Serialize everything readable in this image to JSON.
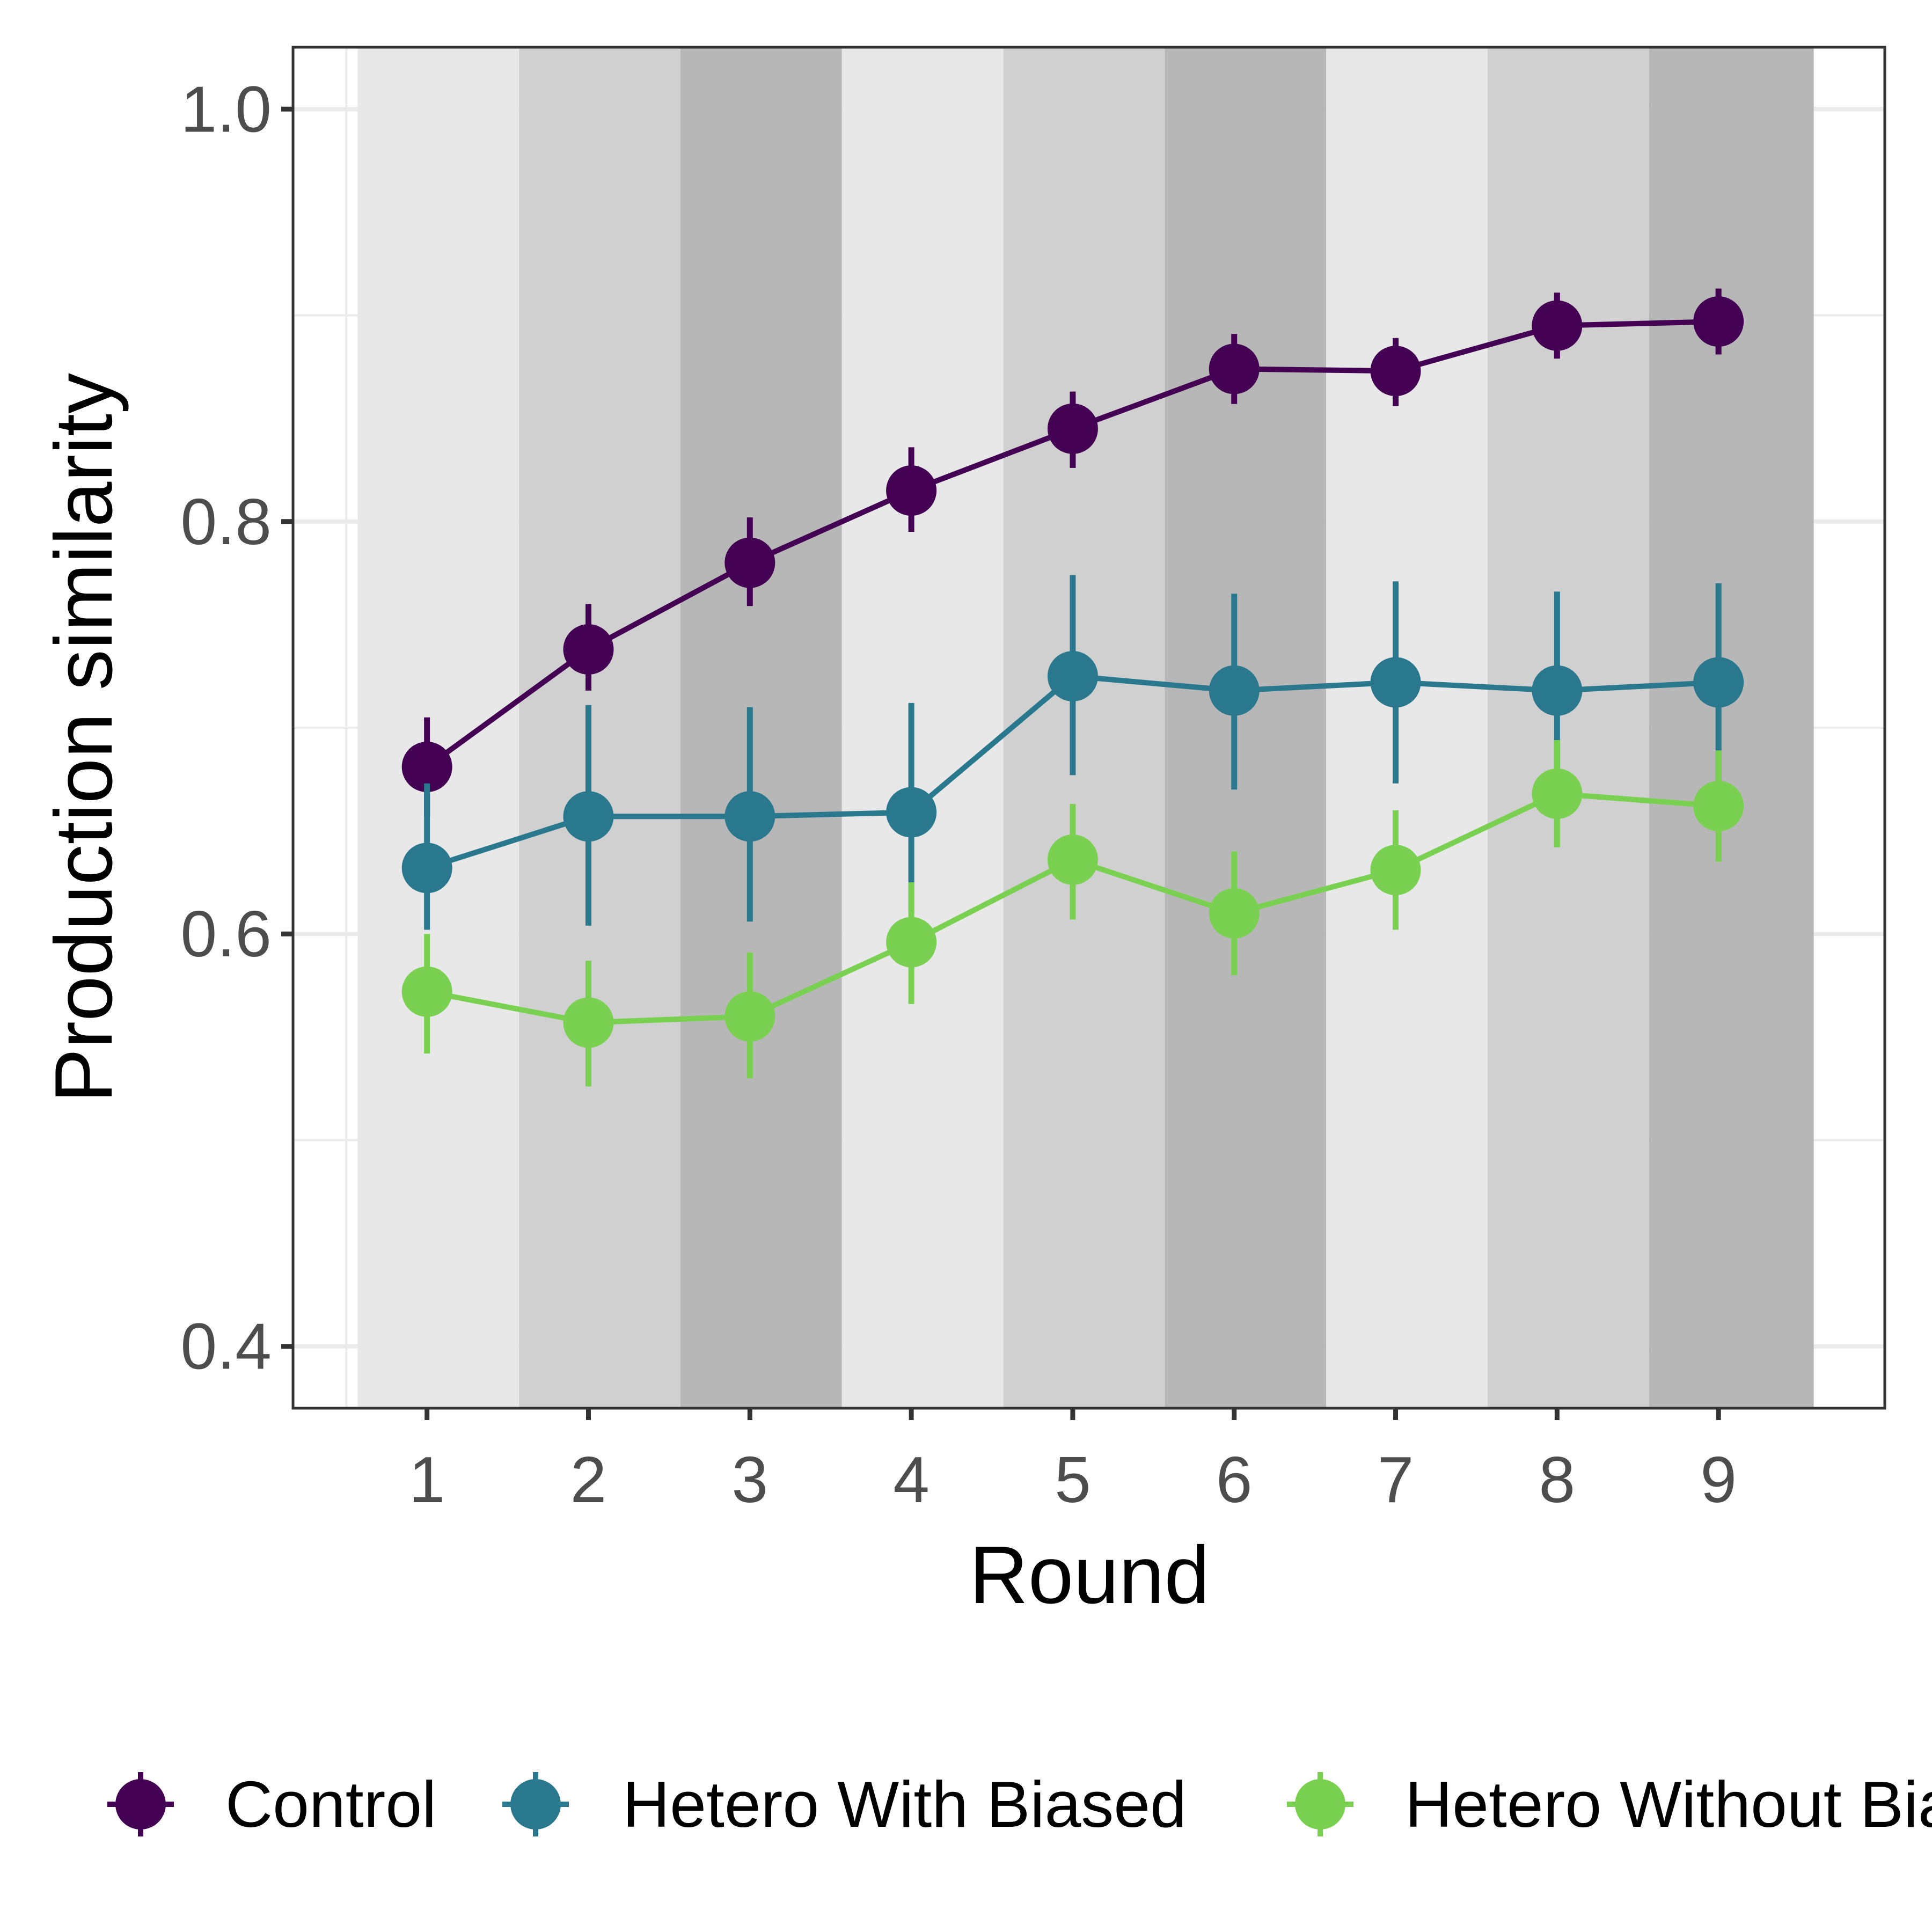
{
  "chart_data": {
    "type": "line",
    "title": "",
    "xlabel": "Round",
    "ylabel": "Production similarity",
    "x": [
      1,
      2,
      3,
      4,
      5,
      6,
      7,
      8,
      9
    ],
    "xlim": [
      0.17,
      10.03
    ],
    "ylim": [
      0.37,
      1.03
    ],
    "y_ticks": [
      0.4,
      0.6,
      0.8,
      1.0
    ],
    "y_tick_labels": [
      "0.4",
      "0.6",
      "0.8",
      "1.0"
    ],
    "x_tick_labels": [
      "1",
      "2",
      "3",
      "4",
      "5",
      "6",
      "7",
      "8",
      "9"
    ],
    "grid": true,
    "legend_position": "bottom",
    "background_bands": [
      {
        "from": 0.57,
        "to": 1.57,
        "color": "#e8e8e8"
      },
      {
        "from": 1.57,
        "to": 2.57,
        "color": "#d0d0d0"
      },
      {
        "from": 2.57,
        "to": 3.57,
        "color": "#b7b7b7"
      },
      {
        "from": 3.57,
        "to": 4.57,
        "color": "#e8e8e8"
      },
      {
        "from": 4.57,
        "to": 5.57,
        "color": "#d0d0d0"
      },
      {
        "from": 5.57,
        "to": 6.57,
        "color": "#b7b7b7"
      },
      {
        "from": 6.57,
        "to": 7.57,
        "color": "#e8e8e8"
      },
      {
        "from": 7.57,
        "to": 8.57,
        "color": "#d0d0d0"
      },
      {
        "from": 8.57,
        "to": 9.59,
        "color": "#b7b7b7"
      }
    ],
    "series": [
      {
        "name": "Control",
        "color": "#440154",
        "values": [
          0.681,
          0.738,
          0.78,
          0.815,
          0.845,
          0.874,
          0.873,
          0.895,
          0.897
        ],
        "ci_low": [
          0.657,
          0.718,
          0.759,
          0.795,
          0.826,
          0.857,
          0.856,
          0.879,
          0.881
        ],
        "ci_high": [
          0.705,
          0.76,
          0.802,
          0.836,
          0.863,
          0.891,
          0.889,
          0.911,
          0.913
        ]
      },
      {
        "name": "Hetero With Biased",
        "color": "#2a788e",
        "values": [
          0.632,
          0.657,
          0.657,
          0.659,
          0.725,
          0.718,
          0.722,
          0.718,
          0.722
        ],
        "ci_low": [
          0.602,
          0.604,
          0.606,
          0.61,
          0.677,
          0.67,
          0.673,
          0.671,
          0.674
        ],
        "ci_high": [
          0.673,
          0.711,
          0.71,
          0.712,
          0.774,
          0.765,
          0.771,
          0.766,
          0.77
        ]
      },
      {
        "name": "Hetero Without Biased",
        "color": "#7ad151",
        "values": [
          0.572,
          0.557,
          0.56,
          0.596,
          0.636,
          0.61,
          0.631,
          0.668,
          0.662
        ],
        "ci_low": [
          0.542,
          0.526,
          0.53,
          0.566,
          0.607,
          0.58,
          0.602,
          0.642,
          0.635
        ],
        "ci_high": [
          0.6,
          0.587,
          0.591,
          0.625,
          0.663,
          0.64,
          0.66,
          0.694,
          0.689
        ]
      }
    ]
  }
}
